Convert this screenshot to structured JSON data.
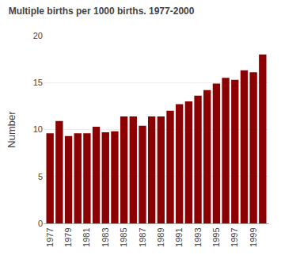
{
  "chart_data": {
    "type": "bar",
    "title": "Multiple births per 1000 births. 1977-2000",
    "ylabel": "Number",
    "x": [
      1977,
      1978,
      1979,
      1980,
      1981,
      1982,
      1983,
      1984,
      1985,
      1986,
      1987,
      1988,
      1989,
      1990,
      1991,
      1992,
      1993,
      1994,
      1995,
      1996,
      1997,
      1998,
      1999,
      2000
    ],
    "values": [
      9.6,
      10.9,
      9.3,
      9.6,
      9.6,
      10.3,
      9.7,
      9.8,
      11.4,
      11.4,
      10.4,
      11.4,
      11.4,
      12.0,
      12.7,
      13.0,
      13.6,
      14.2,
      14.9,
      15.5,
      15.3,
      16.3,
      16.1,
      18.0
    ],
    "color": "#8B0000",
    "xlim": [
      1976.3,
      2000.7
    ],
    "xticks": [
      1977,
      1979,
      1981,
      1983,
      1985,
      1987,
      1989,
      1991,
      1993,
      1995,
      1997,
      1999
    ],
    "ylim": [
      0,
      20
    ],
    "yticks": [
      0,
      5,
      10,
      15,
      20
    ],
    "grid": true
  }
}
